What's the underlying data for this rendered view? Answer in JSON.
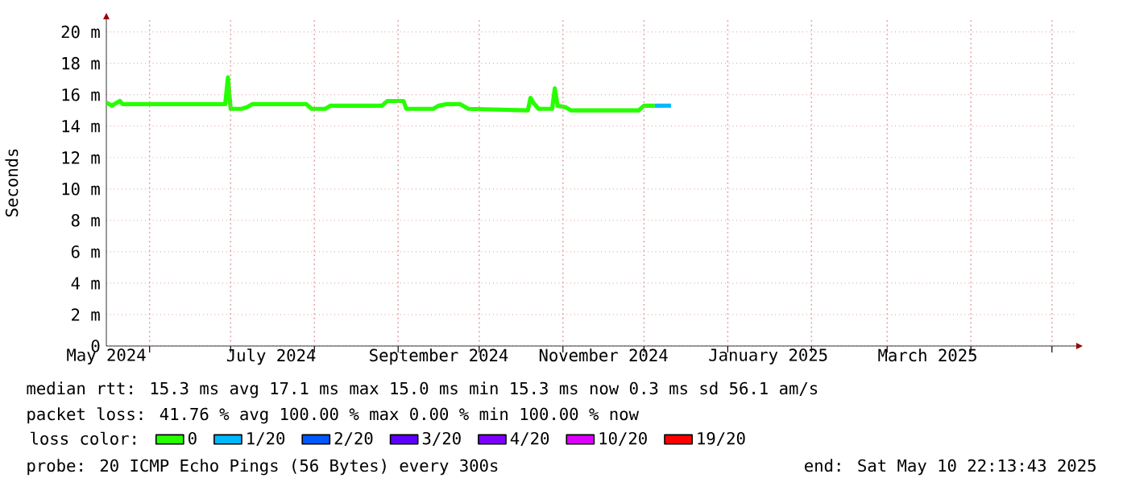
{
  "chart_data": {
    "type": "line",
    "ylabel": "Seconds",
    "x": [
      "2024-05-16",
      "2024-05-18",
      "2024-05-21",
      "2024-05-22",
      "2024-06-29",
      "2024-06-30",
      "2024-07-01",
      "2024-07-05",
      "2024-07-07",
      "2024-07-09",
      "2024-07-29",
      "2024-07-31",
      "2024-08-05",
      "2024-08-07",
      "2024-08-26",
      "2024-08-28",
      "2024-09-03",
      "2024-09-04",
      "2024-09-14",
      "2024-09-16",
      "2024-09-19",
      "2024-09-24",
      "2024-09-27",
      "2024-10-19",
      "2024-10-20",
      "2024-10-21",
      "2024-10-23",
      "2024-10-28",
      "2024-10-29",
      "2024-10-30",
      "2024-11-02",
      "2024-11-04",
      "2024-11-29",
      "2024-12-01",
      "2024-12-05"
    ],
    "series": [
      {
        "name": "0",
        "color": "#26ff00",
        "values": [
          15.5,
          15.3,
          15.6,
          15.4,
          15.4,
          17.1,
          15.1,
          15.1,
          15.2,
          15.4,
          15.4,
          15.1,
          15.1,
          15.3,
          15.3,
          15.6,
          15.6,
          15.1,
          15.1,
          15.3,
          15.4,
          15.4,
          15.1,
          15.0,
          15.8,
          15.5,
          15.1,
          15.1,
          16.4,
          15.3,
          15.2,
          15.0,
          15.0,
          15.3,
          15.3
        ]
      },
      {
        "name": "1/20",
        "color": "#00b8ff",
        "x": [
          "2024-12-05",
          "2024-12-11"
        ],
        "values": [
          15.3,
          15.3
        ]
      },
      {
        "name": "2/20",
        "color": "#0059ff",
        "values": [
          null,
          null,
          null,
          null,
          null,
          null,
          null,
          null,
          null,
          null,
          null,
          null,
          null,
          null,
          null,
          null,
          null,
          null,
          null,
          null,
          null,
          null,
          null,
          null,
          null,
          null,
          null,
          null,
          null,
          null,
          null,
          null,
          null,
          null,
          null
        ]
      },
      {
        "name": "3/20",
        "color": "#5e00ff",
        "values": [
          null,
          null,
          null,
          null,
          null,
          null,
          null,
          null,
          null,
          null,
          null,
          null,
          null,
          null,
          null,
          null,
          null,
          null,
          null,
          null,
          null,
          null,
          null,
          null,
          null,
          null,
          null,
          null,
          null,
          null,
          null,
          null,
          null,
          null,
          null
        ]
      },
      {
        "name": "4/20",
        "color": "#7e00ff",
        "values": [
          null,
          null,
          null,
          null,
          null,
          null,
          null,
          null,
          null,
          null,
          null,
          null,
          null,
          null,
          null,
          null,
          null,
          null,
          null,
          null,
          null,
          null,
          null,
          null,
          null,
          null,
          null,
          null,
          null,
          null,
          null,
          null,
          null,
          null,
          null
        ]
      },
      {
        "name": "10/20",
        "color": "#dd00ff",
        "values": [
          null,
          null,
          null,
          null,
          null,
          null,
          null,
          null,
          null,
          null,
          null,
          null,
          null,
          null,
          null,
          null,
          null,
          null,
          null,
          null,
          null,
          null,
          null,
          null,
          null,
          null,
          null,
          null,
          null,
          null,
          null,
          null,
          null,
          null,
          null
        ]
      },
      {
        "name": "19/20",
        "color": "#ff0000",
        "values": [
          null,
          null,
          null,
          null,
          null,
          null,
          null,
          null,
          null,
          null,
          null,
          null,
          null,
          null,
          null,
          null,
          null,
          null,
          null,
          null,
          null,
          null,
          null,
          null,
          null,
          null,
          null,
          null,
          null,
          null,
          null,
          null,
          null,
          null,
          null
        ]
      }
    ],
    "legend": "bottom",
    "legend_title": "loss color:",
    "grid": true,
    "line_style": "solid",
    "marker": "none",
    "xlim": [
      "2024-05-16",
      "2025-05-10"
    ],
    "xticks": [
      {
        "value": "2024-05-16",
        "label": "May 2024"
      },
      {
        "value": "2024-07-16",
        "label": "July 2024"
      },
      {
        "value": "2024-09-16",
        "label": "September 2024"
      },
      {
        "value": "2024-11-16",
        "label": "November 2024"
      },
      {
        "value": "2025-01-16",
        "label": "January 2025"
      },
      {
        "value": "2025-03-16",
        "label": "March 2025"
      },
      {
        "value": "2024-06-01",
        "label": null
      },
      {
        "value": "2024-07-01",
        "label": null
      },
      {
        "value": "2024-08-01",
        "label": null
      },
      {
        "value": "2024-09-01",
        "label": null
      },
      {
        "value": "2024-10-01",
        "label": null
      },
      {
        "value": "2024-11-01",
        "label": null
      },
      {
        "value": "2024-12-01",
        "label": null
      },
      {
        "value": "2025-01-01",
        "label": null
      },
      {
        "value": "2025-02-01",
        "label": null
      },
      {
        "value": "2025-03-01",
        "label": null
      },
      {
        "value": "2025-04-01",
        "label": null
      },
      {
        "value": "2025-05-01",
        "label": null
      }
    ],
    "ylim": [
      0,
      20.8
    ],
    "yticks": [
      0,
      {
        "value": 2,
        "label": "2 m"
      },
      {
        "value": 4,
        "label": "4 m"
      },
      {
        "value": 6,
        "label": "6 m"
      },
      {
        "value": 8,
        "label": "8 m"
      },
      {
        "value": 10,
        "label": "10 m"
      },
      {
        "value": 12,
        "label": "12 m"
      },
      {
        "value": 14,
        "label": "14 m"
      },
      {
        "value": 16,
        "label": "16 m"
      },
      {
        "value": 18,
        "label": "18 m"
      },
      {
        "value": 20,
        "label": "20 m"
      }
    ],
    "annotations": [
      "median rtt:  15.3 ms avg  17.1 ms max  15.0 ms min  15.3 ms now  0.3 ms sd  56.1   am/s",
      "packet loss: 41.76 % avg  100.00 % max  0.00 % min  100.00 % now",
      "probe:       20 ICMP Echo Pings (56 Bytes) every 300s",
      "end: Sat May 10 22:13:43 2025"
    ]
  }
}
